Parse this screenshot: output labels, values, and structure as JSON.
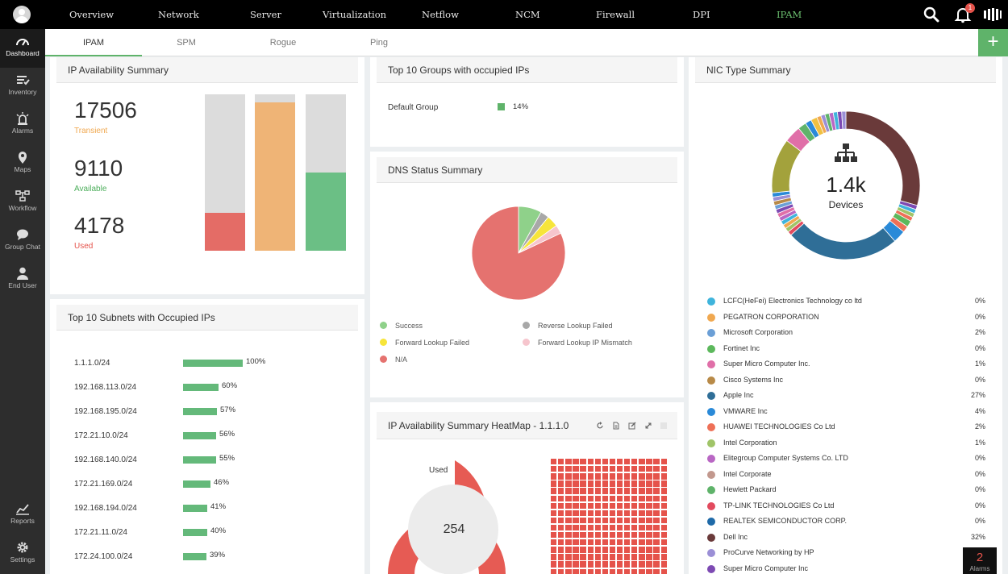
{
  "topnav": {
    "items": [
      {
        "label": "Overview",
        "active": false
      },
      {
        "label": "Network",
        "active": false
      },
      {
        "label": "Server",
        "active": false
      },
      {
        "label": "Virtualization",
        "active": false
      },
      {
        "label": "Netflow",
        "active": false
      },
      {
        "label": "NCM",
        "active": false
      },
      {
        "label": "Firewall",
        "active": false
      },
      {
        "label": "DPI",
        "active": false
      },
      {
        "label": "IPAM",
        "active": true
      }
    ],
    "notification_count": "1",
    "icons": [
      "user-avatar-icon",
      "search-icon",
      "bell-icon",
      "apps-icon"
    ]
  },
  "sidebar": {
    "items": [
      {
        "label": "Dashboard",
        "icon": "dashboard-icon",
        "active": true
      },
      {
        "label": "Inventory",
        "icon": "inventory-icon"
      },
      {
        "label": "Alarms",
        "icon": "alarm-light-icon"
      },
      {
        "label": "Maps",
        "icon": "map-pin-icon"
      },
      {
        "label": "Workflow",
        "icon": "workflow-icon"
      },
      {
        "label": "Group Chat",
        "icon": "chat-icon"
      },
      {
        "label": "End User",
        "icon": "user-icon"
      }
    ],
    "bottom": [
      {
        "label": "Reports",
        "icon": "reports-icon"
      },
      {
        "label": "Settings",
        "icon": "gear-icon"
      }
    ]
  },
  "subtabs": {
    "items": [
      "IPAM",
      "SPM",
      "Rogue",
      "Ping"
    ],
    "active": "IPAM",
    "add_label": "+"
  },
  "ip_summary": {
    "title": "IP Availability Summary",
    "stats": [
      {
        "value": "17506",
        "label": "Transient",
        "color": "#f0a850"
      },
      {
        "value": "9110",
        "label": "Available",
        "color": "#4cae5b"
      },
      {
        "value": "4178",
        "label": "Used",
        "color": "#e5534b"
      }
    ],
    "bars": [
      {
        "name": "used",
        "fraction": 0.24,
        "color": "#e46c66"
      },
      {
        "name": "transient",
        "fraction": 0.95,
        "color": "#efb476"
      },
      {
        "name": "available",
        "fraction": 0.5,
        "color": "#6bbf85"
      }
    ]
  },
  "subnets": {
    "title": "Top 10 Subnets with Occupied IPs",
    "rows": [
      {
        "name": "1.1.1.0/24",
        "pct": "100%",
        "value": 100
      },
      {
        "name": "192.168.113.0/24",
        "pct": "60%",
        "value": 60
      },
      {
        "name": "192.168.195.0/24",
        "pct": "57%",
        "value": 57
      },
      {
        "name": "172.21.10.0/24",
        "pct": "56%",
        "value": 56
      },
      {
        "name": "192.168.140.0/24",
        "pct": "55%",
        "value": 55
      },
      {
        "name": "172.21.169.0/24",
        "pct": "46%",
        "value": 46
      },
      {
        "name": "192.168.194.0/24",
        "pct": "41%",
        "value": 41
      },
      {
        "name": "172.21.11.0/24",
        "pct": "40%",
        "value": 40
      },
      {
        "name": "172.24.100.0/24",
        "pct": "39%",
        "value": 39
      }
    ]
  },
  "groups": {
    "title": "Top 10 Groups with occupied IPs",
    "rows": [
      {
        "name": "Default Group",
        "pct": "14%",
        "color": "#5fb36a"
      }
    ]
  },
  "dns": {
    "title": "DNS Status Summary",
    "legend": [
      {
        "label": "Success",
        "color": "#8fd18a"
      },
      {
        "label": "Reverse Lookup Failed",
        "color": "#a8a8a8"
      },
      {
        "label": "Forward Lookup Failed",
        "color": "#f7e53a"
      },
      {
        "label": "Forward Lookup IP Mismatch",
        "color": "#f6c5cd"
      },
      {
        "label": "N/A",
        "color": "#e5726f"
      }
    ],
    "slices": [
      {
        "label": "Success",
        "value": 8,
        "color": "#8fd18a"
      },
      {
        "label": "Reverse Lookup Failed",
        "value": 3,
        "color": "#a8a8a8"
      },
      {
        "label": "Forward Lookup Failed",
        "value": 4,
        "color": "#f7e53a"
      },
      {
        "label": "Forward Lookup IP Mismatch",
        "value": 3,
        "color": "#f6c5cd"
      },
      {
        "label": "N/A",
        "value": 82,
        "color": "#e5726f"
      }
    ]
  },
  "heatmap": {
    "title": "IP Availability Summary HeatMap - 1.1.1.0",
    "used_label": "Used",
    "used_value": "254",
    "tool_icons": [
      "refresh-icon",
      "document-icon",
      "edit-icon",
      "expand-icon",
      "close-icon"
    ],
    "cell_color": "#e5534b"
  },
  "nic": {
    "title": "NIC Type Summary",
    "center_value": "1.4k",
    "center_label": "Devices",
    "center_icon": "network-hierarchy-icon",
    "rows": [
      {
        "name": "LCFC(HeFei) Electronics Technology co ltd",
        "pct": "0%",
        "color": "#3fb4dc"
      },
      {
        "name": "PEGATRON CORPORATION",
        "pct": "0%",
        "color": "#f0a850"
      },
      {
        "name": "Microsoft Corporation",
        "pct": "2%",
        "color": "#6b9fd6"
      },
      {
        "name": "Fortinet Inc",
        "pct": "0%",
        "color": "#5cb85c"
      },
      {
        "name": "Super Micro Computer Inc.",
        "pct": "1%",
        "color": "#e06fa8"
      },
      {
        "name": "Cisco Systems Inc",
        "pct": "0%",
        "color": "#b88a48"
      },
      {
        "name": "Apple Inc",
        "pct": "27%",
        "color": "#2f6e97"
      },
      {
        "name": "VMWARE Inc",
        "pct": "4%",
        "color": "#2a8ad8"
      },
      {
        "name": "HUAWEI TECHNOLOGIES Co Ltd",
        "pct": "2%",
        "color": "#ee7057"
      },
      {
        "name": "Intel Corporation",
        "pct": "1%",
        "color": "#a0c468"
      },
      {
        "name": "Elitegroup Computer Systems Co. LTD",
        "pct": "0%",
        "color": "#b967c4"
      },
      {
        "name": "Intel Corporate",
        "pct": "0%",
        "color": "#c2988e"
      },
      {
        "name": "Hewlett Packard",
        "pct": "0%",
        "color": "#5fb36a"
      },
      {
        "name": "TP-LINK TECHNOLOGIES Co Ltd",
        "pct": "0%",
        "color": "#e24a5e"
      },
      {
        "name": "REALTEK SEMICONDUCTOR CORP.",
        "pct": "0%",
        "color": "#1f6aa8"
      },
      {
        "name": "Dell Inc",
        "pct": "32%",
        "color": "#6a3a3a"
      },
      {
        "name": "ProCurve Networking by HP",
        "pct": "0%",
        "color": "#9b8fd6"
      },
      {
        "name": "Super Micro Computer Inc",
        "pct": "0%",
        "color": "#7d4ab3"
      }
    ],
    "ring": [
      {
        "value": 32,
        "color": "#6a3a3a"
      },
      {
        "value": 1,
        "color": "#7d4ab3"
      },
      {
        "value": 1,
        "color": "#3fb4dc"
      },
      {
        "value": 1,
        "color": "#a0c468"
      },
      {
        "value": 1,
        "color": "#ee7057"
      },
      {
        "value": 1.5,
        "color": "#5cb85c"
      },
      {
        "value": 1.5,
        "color": "#ee7057"
      },
      {
        "value": 3,
        "color": "#2a8ad8"
      },
      {
        "value": 27,
        "color": "#2f6e97"
      },
      {
        "value": 1,
        "color": "#e24a5e"
      },
      {
        "value": 1,
        "color": "#a0c468"
      },
      {
        "value": 1,
        "color": "#f0a850"
      },
      {
        "value": 1,
        "color": "#3fb4dc"
      },
      {
        "value": 1,
        "color": "#b967c4"
      },
      {
        "value": 1,
        "color": "#e06fa8"
      },
      {
        "value": 1,
        "color": "#7d4ab3"
      },
      {
        "value": 1,
        "color": "#6b9fd6"
      },
      {
        "value": 1,
        "color": "#b88a48"
      },
      {
        "value": 1,
        "color": "#9b8fd6"
      },
      {
        "value": 1,
        "color": "#2a8ad8"
      },
      {
        "value": 13,
        "color": "#a3a23c"
      },
      {
        "value": 4,
        "color": "#e06fa8"
      },
      {
        "value": 2,
        "color": "#5fb36a"
      },
      {
        "value": 1.5,
        "color": "#2a8ad8"
      },
      {
        "value": 1.5,
        "color": "#f0c040"
      },
      {
        "value": 1,
        "color": "#f0a850"
      },
      {
        "value": 1,
        "color": "#9b8fd6"
      },
      {
        "value": 1,
        "color": "#5fb36a"
      },
      {
        "value": 1,
        "color": "#b967c4"
      },
      {
        "value": 1,
        "color": "#3fb4dc"
      },
      {
        "value": 1,
        "color": "#7d4ab3"
      },
      {
        "value": 1,
        "color": "#9b8fd6"
      }
    ]
  },
  "alarms": {
    "count": "2",
    "label": "Alarms"
  }
}
